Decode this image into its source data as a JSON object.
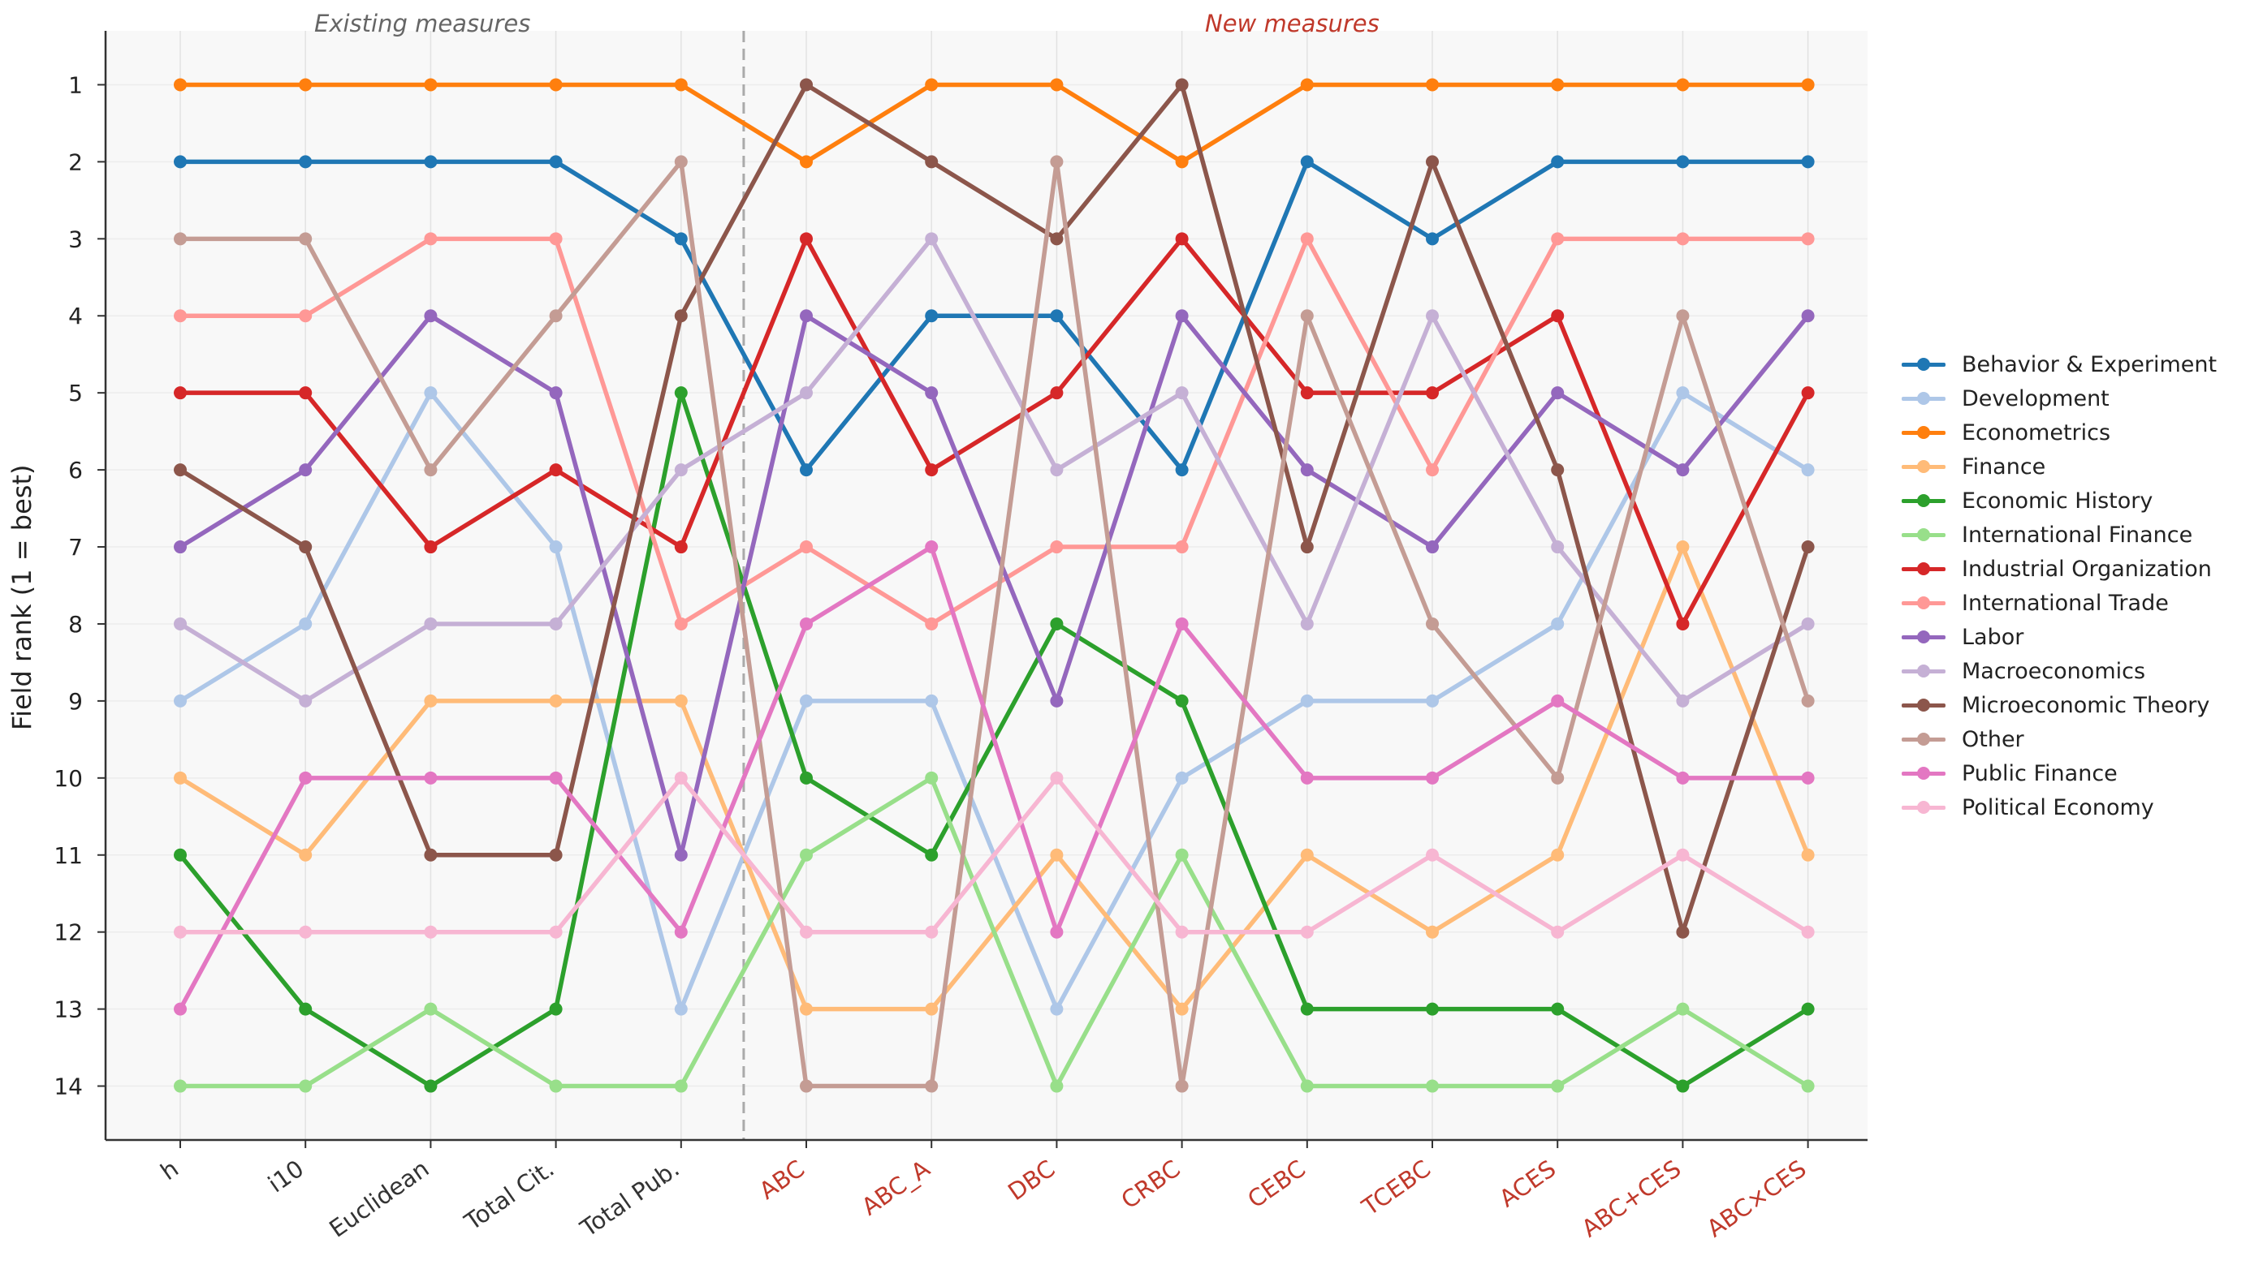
{
  "chart_data": {
    "type": "line",
    "ylabel": "Field rank (1 = best)",
    "ylim": [
      0.3,
      14.7
    ],
    "y_inverted": true,
    "yticks": [
      1,
      2,
      3,
      4,
      5,
      6,
      7,
      8,
      9,
      10,
      11,
      12,
      13,
      14
    ],
    "grid": true,
    "legend_position": "right",
    "section_labels": {
      "existing": "Existing measures",
      "new": "New measures"
    },
    "colors": {
      "existing_tick": "#333333",
      "new_tick": "#c0392b",
      "existing_label": "#666666",
      "new_label": "#c0392b",
      "divider": "#aaaaaa"
    },
    "categories": [
      "h",
      "i10",
      "Euclidean",
      "Total Cit.",
      "Total Pub.",
      "ABC",
      "ABC_A",
      "DBC",
      "CRBC",
      "CEBC",
      "TCEBC",
      "ACES",
      "ABC+CES",
      "ABC×CES"
    ],
    "category_groups": [
      "existing",
      "existing",
      "existing",
      "existing",
      "existing",
      "new",
      "new",
      "new",
      "new",
      "new",
      "new",
      "new",
      "new",
      "new"
    ],
    "series": [
      {
        "name": "Behavior & Experiment",
        "color": "#1f77b4",
        "values": [
          2,
          2,
          2,
          2,
          3,
          6,
          4,
          4,
          6,
          2,
          3,
          2,
          2,
          2
        ]
      },
      {
        "name": "Development",
        "color": "#aec7e8",
        "values": [
          9,
          8,
          5,
          7,
          13,
          9,
          9,
          13,
          10,
          9,
          9,
          8,
          5,
          6
        ]
      },
      {
        "name": "Econometrics",
        "color": "#ff7f0e",
        "values": [
          1,
          1,
          1,
          1,
          1,
          2,
          1,
          1,
          2,
          1,
          1,
          1,
          1,
          1
        ]
      },
      {
        "name": "Finance",
        "color": "#ffbb78",
        "values": [
          10,
          11,
          9,
          9,
          9,
          13,
          13,
          11,
          13,
          11,
          12,
          11,
          7,
          11
        ]
      },
      {
        "name": "Economic History",
        "color": "#2ca02c",
        "values": [
          11,
          13,
          14,
          13,
          5,
          10,
          11,
          8,
          9,
          13,
          13,
          13,
          14,
          13
        ]
      },
      {
        "name": "International Finance",
        "color": "#98df8a",
        "values": [
          14,
          14,
          13,
          14,
          14,
          11,
          10,
          14,
          11,
          14,
          14,
          14,
          13,
          14
        ]
      },
      {
        "name": "Industrial Organization",
        "color": "#d62728",
        "values": [
          5,
          5,
          7,
          6,
          7,
          3,
          6,
          5,
          3,
          5,
          5,
          4,
          8,
          5
        ]
      },
      {
        "name": "International Trade",
        "color": "#ff9896",
        "values": [
          4,
          4,
          3,
          3,
          8,
          7,
          8,
          7,
          7,
          3,
          6,
          3,
          3,
          3
        ]
      },
      {
        "name": "Labor",
        "color": "#9467bd",
        "values": [
          7,
          6,
          4,
          5,
          11,
          4,
          5,
          9,
          4,
          6,
          7,
          5,
          6,
          4
        ]
      },
      {
        "name": "Macroeconomics",
        "color": "#c5b0d5",
        "values": [
          8,
          9,
          8,
          8,
          6,
          5,
          3,
          6,
          5,
          8,
          4,
          7,
          9,
          8
        ]
      },
      {
        "name": "Microeconomic Theory",
        "color": "#8c564b",
        "values": [
          6,
          7,
          11,
          11,
          4,
          1,
          2,
          3,
          1,
          7,
          2,
          6,
          12,
          7
        ]
      },
      {
        "name": "Other",
        "color": "#c49c94",
        "values": [
          3,
          3,
          6,
          4,
          2,
          14,
          14,
          2,
          14,
          4,
          8,
          10,
          4,
          9
        ]
      },
      {
        "name": "Public Finance",
        "color": "#e377c2",
        "values": [
          13,
          10,
          10,
          10,
          12,
          8,
          7,
          12,
          8,
          10,
          10,
          9,
          10,
          10
        ]
      },
      {
        "name": "Political Economy",
        "color": "#f7b6d2",
        "values": [
          12,
          12,
          12,
          12,
          10,
          12,
          12,
          10,
          12,
          12,
          11,
          12,
          11,
          12
        ]
      }
    ]
  }
}
